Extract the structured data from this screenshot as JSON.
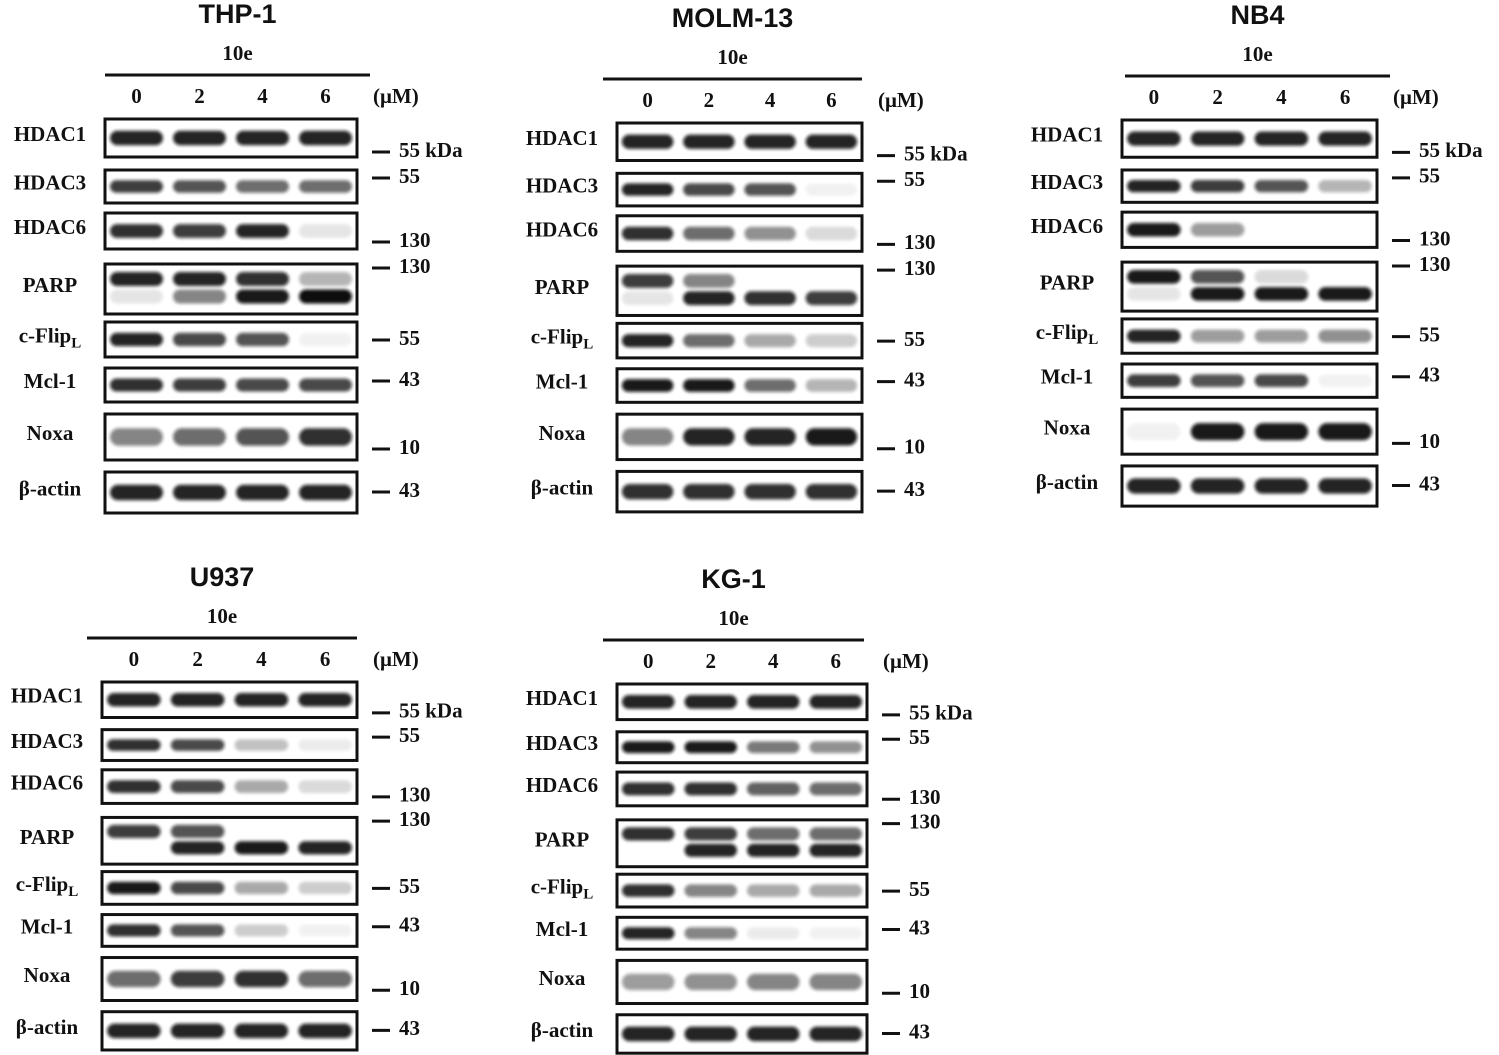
{
  "panels": [
    {
      "title": "THP-1",
      "treatment": "10e",
      "lanes": [
        "0",
        "2",
        "4",
        "6"
      ],
      "unit": "(μM)",
      "rows": [
        {
          "label": "HDAC1",
          "marker": "55 kDa"
        },
        {
          "label": "HDAC3",
          "marker": "55"
        },
        {
          "label": "HDAC6",
          "marker": "130"
        },
        {
          "label": "PARP",
          "marker": "130"
        },
        {
          "label": "c-Flip",
          "label_sub": "L",
          "marker": "55"
        },
        {
          "label": "Mcl-1",
          "marker": "43"
        },
        {
          "label": "Noxa",
          "marker": "10"
        },
        {
          "label": "β-actin",
          "marker": "43"
        }
      ]
    },
    {
      "title": "MOLM-13",
      "treatment": "10e",
      "lanes": [
        "0",
        "2",
        "4",
        "6"
      ],
      "unit": "(μM)",
      "rows": [
        {
          "label": "HDAC1",
          "marker": "55 kDa"
        },
        {
          "label": "HDAC3",
          "marker": "55"
        },
        {
          "label": "HDAC6",
          "marker": "130"
        },
        {
          "label": "PARP",
          "marker": "130"
        },
        {
          "label": "c-Flip",
          "label_sub": "L",
          "marker": "55"
        },
        {
          "label": "Mcl-1",
          "marker": "43"
        },
        {
          "label": "Noxa",
          "marker": "10"
        },
        {
          "label": "β-actin",
          "marker": "43"
        }
      ]
    },
    {
      "title": "NB4",
      "treatment": "10e",
      "lanes": [
        "0",
        "2",
        "4",
        "6"
      ],
      "unit": "(μM)",
      "rows": [
        {
          "label": "HDAC1",
          "marker": "55 kDa"
        },
        {
          "label": "HDAC3",
          "marker": "55"
        },
        {
          "label": "HDAC6",
          "marker": "130"
        },
        {
          "label": "PARP",
          "marker": "130"
        },
        {
          "label": "c-Flip",
          "label_sub": "L",
          "marker": "55"
        },
        {
          "label": "Mcl-1",
          "marker": "43"
        },
        {
          "label": "Noxa",
          "marker": "10"
        },
        {
          "label": "β-actin",
          "marker": "43"
        }
      ]
    },
    {
      "title": "U937",
      "treatment": "10e",
      "lanes": [
        "0",
        "2",
        "4",
        "6"
      ],
      "unit": "(μM)",
      "rows": [
        {
          "label": "HDAC1",
          "marker": "55 kDa"
        },
        {
          "label": "HDAC3",
          "marker": "55"
        },
        {
          "label": "HDAC6",
          "marker": "130"
        },
        {
          "label": "PARP",
          "marker": "130"
        },
        {
          "label": "c-Flip",
          "label_sub": "L",
          "marker": "55"
        },
        {
          "label": "Mcl-1",
          "marker": "43"
        },
        {
          "label": "Noxa",
          "marker": "10"
        },
        {
          "label": "β-actin",
          "marker": "43"
        }
      ]
    },
    {
      "title": "KG-1",
      "treatment": "10e",
      "lanes": [
        "0",
        "2",
        "4",
        "6"
      ],
      "unit": "(μM)",
      "rows": [
        {
          "label": "HDAC1",
          "marker": "55 kDa"
        },
        {
          "label": "HDAC3",
          "marker": "55"
        },
        {
          "label": "HDAC6",
          "marker": "130"
        },
        {
          "label": "PARP",
          "marker": "130"
        },
        {
          "label": "c-Flip",
          "label_sub": "L",
          "marker": "55"
        },
        {
          "label": "Mcl-1",
          "marker": "43"
        },
        {
          "label": "Noxa",
          "marker": "10"
        },
        {
          "label": "β-actin",
          "marker": "43"
        }
      ]
    }
  ]
}
